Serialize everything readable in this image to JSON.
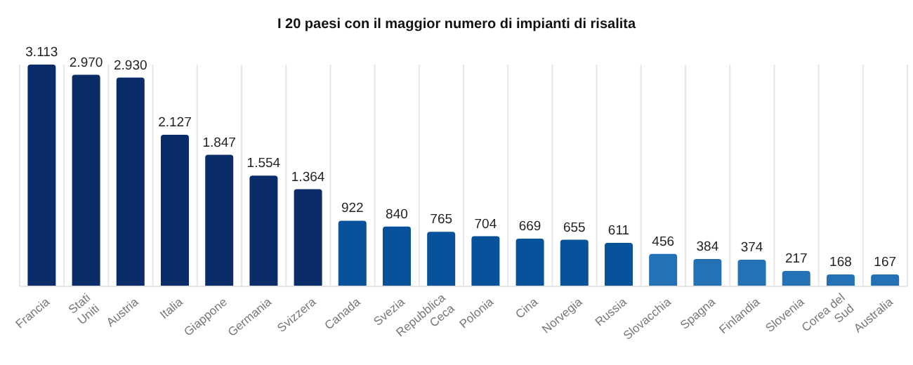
{
  "chart_data": {
    "type": "bar",
    "title": "I 20 paesi con il maggior numero di impianti di risalita",
    "categories": [
      "Francia",
      "Stati Uniti",
      "Austria",
      "Italia",
      "Giappone",
      "Germania",
      "Svizzera",
      "Canada",
      "Svezia",
      "Repubblica Ceca",
      "Polonia",
      "Cina",
      "Norvegia",
      "Russia",
      "Slovacchia",
      "Spagna",
      "Finlandia",
      "Slovenia",
      "Corea del Sud",
      "Australia"
    ],
    "values": [
      3113,
      2970,
      2930,
      2127,
      1847,
      1554,
      1364,
      922,
      840,
      765,
      704,
      669,
      655,
      611,
      456,
      384,
      374,
      217,
      168,
      167
    ],
    "value_labels": [
      "3.113",
      "2.970",
      "2.930",
      "2.127",
      "1.847",
      "1.554",
      "1.364",
      "922",
      "840",
      "765",
      "704",
      "669",
      "655",
      "611",
      "456",
      "384",
      "374",
      "217",
      "168",
      "167"
    ],
    "colors": [
      "#0a2d69",
      "#0a2d69",
      "#0a2d69",
      "#0a2d69",
      "#0a2d69",
      "#0a2d69",
      "#0a2d69",
      "#08529b",
      "#08529b",
      "#08529b",
      "#08529b",
      "#08529b",
      "#08529b",
      "#08529b",
      "#2472b5",
      "#2472b5",
      "#2472b5",
      "#2472b5",
      "#2472b5",
      "#2472b5"
    ],
    "grid": "x"
  }
}
